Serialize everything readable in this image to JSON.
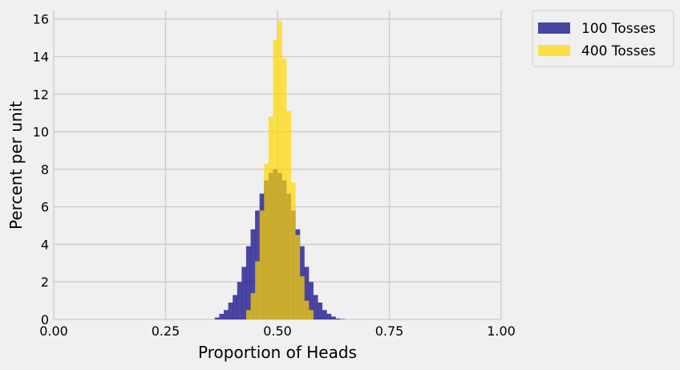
{
  "chart_data": {
    "type": "histogram",
    "xlabel": "Proportion of Heads",
    "ylabel": "Percent per unit",
    "xlim": [
      0,
      1
    ],
    "ylim": [
      0,
      16.5
    ],
    "xticks": [
      {
        "value": 0,
        "label": "0.00"
      },
      {
        "value": 0.25,
        "label": "0.25"
      },
      {
        "value": 0.5,
        "label": "0.50"
      },
      {
        "value": 0.75,
        "label": "0.75"
      },
      {
        "value": 1,
        "label": "1.00"
      }
    ],
    "yticks": [
      {
        "value": 0,
        "label": "0"
      },
      {
        "value": 2,
        "label": "2"
      },
      {
        "value": 4,
        "label": "4"
      },
      {
        "value": 6,
        "label": "6"
      },
      {
        "value": 8,
        "label": "8"
      },
      {
        "value": 10,
        "label": "10"
      },
      {
        "value": 12,
        "label": "12"
      },
      {
        "value": 14,
        "label": "14"
      },
      {
        "value": 16,
        "label": "16"
      }
    ],
    "grid": true,
    "legend_position": "outside-top-right",
    "series": [
      {
        "name": "100 Tosses",
        "color": "#1f1a8f",
        "opacity": 0.8,
        "bin_edges": [
          0.36,
          0.37,
          0.38,
          0.39,
          0.4,
          0.41,
          0.42,
          0.43,
          0.44,
          0.45,
          0.46,
          0.47,
          0.48,
          0.49,
          0.5,
          0.51,
          0.52,
          0.53,
          0.54,
          0.55,
          0.56,
          0.57,
          0.58,
          0.59,
          0.6,
          0.61,
          0.62,
          0.63,
          0.64,
          0.65
        ],
        "values": [
          0.1,
          0.3,
          0.5,
          0.9,
          1.3,
          2.0,
          2.8,
          3.9,
          4.8,
          5.8,
          6.7,
          7.4,
          7.8,
          8.0,
          7.8,
          7.4,
          6.7,
          5.8,
          4.8,
          3.9,
          2.8,
          2.0,
          1.3,
          0.9,
          0.5,
          0.3,
          0.15,
          0.05,
          0.02
        ]
      },
      {
        "name": "400 Tosses",
        "color": "#ffd700",
        "opacity": 0.7,
        "bin_edges": [
          0.43,
          0.44,
          0.45,
          0.46,
          0.47,
          0.48,
          0.49,
          0.5,
          0.51,
          0.52,
          0.53,
          0.54,
          0.55,
          0.56,
          0.57,
          0.58
        ],
        "values": [
          0.5,
          1.4,
          3.1,
          5.8,
          8.3,
          10.8,
          14.9,
          15.9,
          13.9,
          11.1,
          7.3,
          4.5,
          2.3,
          1.0,
          0.5
        ]
      }
    ]
  }
}
